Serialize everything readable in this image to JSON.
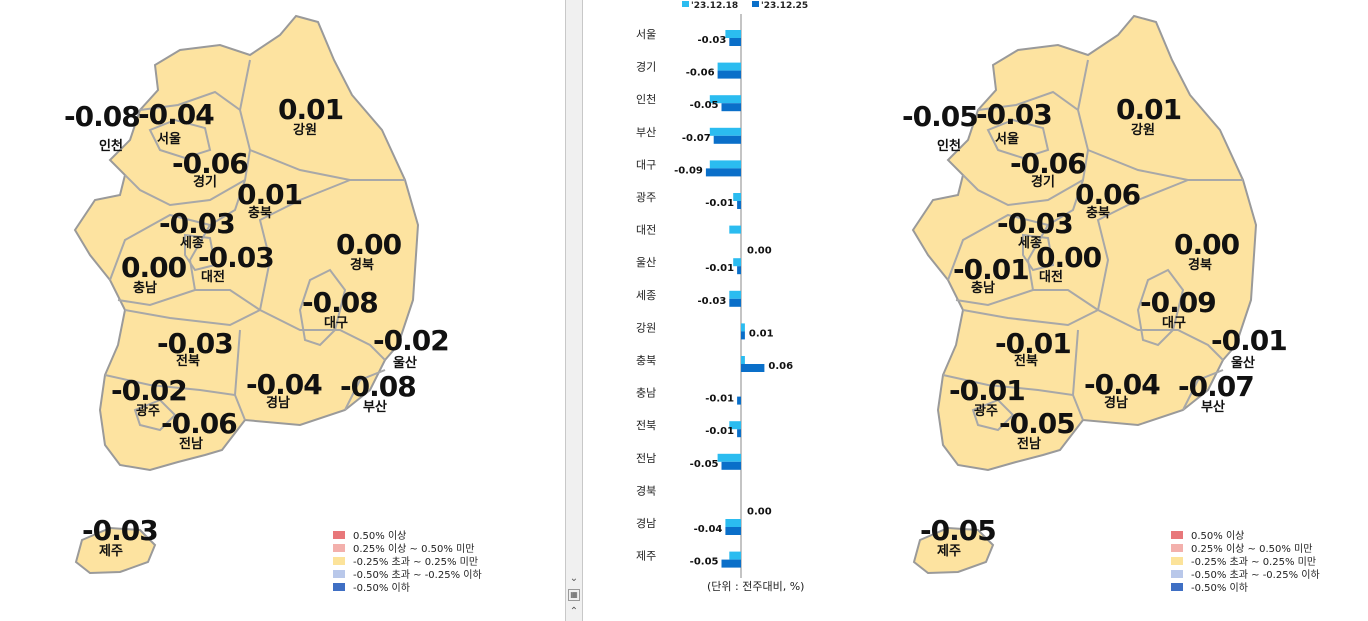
{
  "chart_data": [
    {
      "type": "map",
      "regions": [
        {
          "name": "인천",
          "value": "-0.08"
        },
        {
          "name": "서울",
          "value": "-0.04"
        },
        {
          "name": "강원",
          "value": "0.01"
        },
        {
          "name": "경기",
          "value": "-0.06"
        },
        {
          "name": "충북",
          "value": "0.01"
        },
        {
          "name": "세종",
          "value": "-0.03"
        },
        {
          "name": "대전",
          "value": "-0.03"
        },
        {
          "name": "충남",
          "value": "0.00"
        },
        {
          "name": "경북",
          "value": "0.00"
        },
        {
          "name": "대구",
          "value": "-0.08"
        },
        {
          "name": "울산",
          "value": "-0.02"
        },
        {
          "name": "전북",
          "value": "-0.03"
        },
        {
          "name": "광주",
          "value": "-0.02"
        },
        {
          "name": "경남",
          "value": "-0.04"
        },
        {
          "name": "부산",
          "value": "-0.08"
        },
        {
          "name": "전남",
          "value": "-0.06"
        },
        {
          "name": "제주",
          "value": "-0.03"
        }
      ]
    },
    {
      "type": "bar",
      "categories": [
        "서울",
        "경기",
        "인천",
        "부산",
        "대구",
        "광주",
        "대전",
        "울산",
        "세종",
        "강원",
        "충북",
        "충남",
        "전북",
        "전남",
        "경북",
        "경남",
        "제주"
      ],
      "series": [
        {
          "name": "'23.12.18",
          "color": "#2bbcf0",
          "values": [
            -0.04,
            -0.06,
            -0.08,
            -0.08,
            -0.08,
            -0.02,
            -0.03,
            -0.02,
            -0.03,
            0.01,
            0.01,
            0.0,
            -0.03,
            -0.06,
            0.0,
            -0.04,
            -0.03
          ]
        },
        {
          "name": "'23.12.25",
          "color": "#0a6fc9",
          "values": [
            -0.03,
            -0.06,
            -0.05,
            -0.07,
            -0.09,
            -0.01,
            0.0,
            -0.01,
            -0.03,
            0.01,
            0.06,
            -0.01,
            -0.01,
            -0.05,
            0.0,
            -0.04,
            -0.05
          ]
        }
      ],
      "data_labels": [
        "-0.03",
        "-0.06",
        "-0.05",
        "-0.07",
        "-0.09",
        "-0.01",
        "0.00",
        "-0.01",
        "-0.03",
        "0.01",
        "0.06",
        "-0.01",
        "-0.01",
        "-0.05",
        "0.00",
        "-0.04",
        "-0.05"
      ],
      "unit_note": "(단위 : 전주대비, %)"
    },
    {
      "type": "map",
      "regions": [
        {
          "name": "인천",
          "value": "-0.05"
        },
        {
          "name": "서울",
          "value": "-0.03"
        },
        {
          "name": "강원",
          "value": "0.01"
        },
        {
          "name": "경기",
          "value": "-0.06"
        },
        {
          "name": "충북",
          "value": "0.06"
        },
        {
          "name": "세종",
          "value": "-0.03"
        },
        {
          "name": "대전",
          "value": "0.00"
        },
        {
          "name": "충남",
          "value": "-0.01"
        },
        {
          "name": "경북",
          "value": "0.00"
        },
        {
          "name": "대구",
          "value": "-0.09"
        },
        {
          "name": "울산",
          "value": "-0.01"
        },
        {
          "name": "전북",
          "value": "-0.01"
        },
        {
          "name": "광주",
          "value": "-0.01"
        },
        {
          "name": "경남",
          "value": "-0.04"
        },
        {
          "name": "부산",
          "value": "-0.07"
        },
        {
          "name": "전남",
          "value": "-0.05"
        },
        {
          "name": "제주",
          "value": "-0.05"
        }
      ]
    }
  ],
  "legend": [
    {
      "label": "0.50% 이상",
      "color": "#e8777a"
    },
    {
      "label": "0.25% 이상 ~ 0.50% 미만",
      "color": "#f3b0ac"
    },
    {
      "label": "-0.25% 초과 ~ 0.25% 미만",
      "color": "#fce39a"
    },
    {
      "label": "-0.50% 초과 ~ -0.25% 이하",
      "color": "#b9c8ea"
    },
    {
      "label": "-0.50% 이하",
      "color": "#3f6fc4"
    }
  ],
  "colors": {
    "map_fill": "#fde3a0",
    "map_border": "#9a9a9a"
  },
  "scrollbar": {
    "down_icon": "chevron-down-icon",
    "page_icon": "page-icon",
    "up_icon": "double-chevron-up-icon"
  }
}
